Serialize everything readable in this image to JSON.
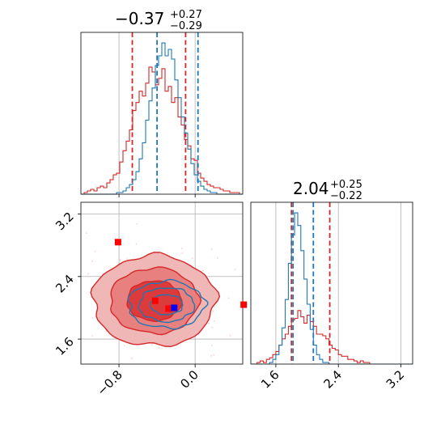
{
  "colors": {
    "red": "#d62728",
    "blue": "#1f77b4",
    "red_fill_outer": "#f0b7b7",
    "red_fill_mid": "#e88080",
    "red_fill_inner": "#dd3b3b",
    "marker_red": "#ff0000",
    "marker_blue": "#0000ff",
    "grid": "#b0b0b0"
  },
  "chart_data": [
    {
      "type": "histogram",
      "panel": "top-left",
      "title": {
        "value": "−0.37",
        "plus": "+0.27",
        "minus": "−0.29"
      },
      "xlim": [
        -1.2,
        0.5
      ],
      "xticks": [
        -0.8,
        0.0
      ],
      "grid": true,
      "series": [
        {
          "color": "#d62728",
          "dashed_lines": [
            -0.66,
            -0.1
          ],
          "bin_start": -1.2,
          "bin_width": 0.034,
          "counts": [
            0,
            1,
            2,
            3,
            2,
            4,
            5,
            4,
            7,
            9,
            12,
            13,
            20,
            27,
            33,
            40,
            52,
            57,
            64,
            61,
            69,
            79,
            76,
            68,
            72,
            78,
            64,
            67,
            57,
            60,
            48,
            43,
            34,
            30,
            22,
            21,
            13,
            10,
            8,
            6,
            5,
            4,
            4,
            3,
            2,
            2,
            1,
            1,
            1,
            0
          ]
        },
        {
          "color": "#1f77b4",
          "dashed_lines": [
            -0.4,
            0.03
          ],
          "bin_start": -1.2,
          "bin_width": 0.034,
          "counts": [
            0,
            0,
            0,
            0,
            0,
            0,
            0,
            0,
            0,
            0,
            0,
            1,
            1,
            2,
            4,
            6,
            9,
            14,
            22,
            32,
            46,
            58,
            66,
            80,
            86,
            94,
            86,
            90,
            84,
            71,
            60,
            48,
            38,
            28,
            19,
            12,
            8,
            5,
            3,
            2,
            1,
            1,
            0,
            0,
            0,
            0,
            0,
            0,
            0,
            0
          ]
        }
      ]
    },
    {
      "type": "contour",
      "panel": "bottom-left",
      "xlim": [
        -1.2,
        0.5
      ],
      "ylim": [
        1.28,
        3.35
      ],
      "xticks": [
        -0.8,
        0.0
      ],
      "yticks": [
        1.6,
        2.4,
        3.2
      ],
      "grid": true,
      "series": [
        {
          "color": "#d62728",
          "filled": true,
          "center": [
            -0.43,
            2.09
          ],
          "spread": [
            0.3,
            0.27
          ]
        },
        {
          "color": "#1f77b4",
          "filled": false,
          "center": [
            -0.3,
            2.04
          ],
          "spread": [
            0.2,
            0.15
          ]
        }
      ],
      "markers": [
        {
          "x": -0.81,
          "y": 2.84,
          "color": "#ff0000"
        },
        {
          "x": -0.42,
          "y": 2.09,
          "color": "#ff0000"
        },
        {
          "x": -0.28,
          "y": 1.99,
          "color": "#ff0000"
        },
        {
          "x": 0.51,
          "y": 2.04,
          "color": "#ff0000"
        },
        {
          "x": -0.22,
          "y": 2.0,
          "color": "#0000ff"
        }
      ]
    },
    {
      "type": "histogram",
      "panel": "bottom-right",
      "title": {
        "value": "2.04",
        "plus": "+0.25",
        "minus": "−0.22"
      },
      "xlim": [
        1.28,
        3.35
      ],
      "xticks": [
        1.6,
        2.4,
        3.2
      ],
      "grid": true,
      "series": [
        {
          "color": "#d62728",
          "dashed_lines": [
            1.8,
            2.29
          ],
          "bin_start": 1.28,
          "bin_width": 0.04,
          "counts": [
            0,
            0,
            1,
            2,
            1,
            3,
            4,
            6,
            8,
            12,
            16,
            19,
            24,
            28,
            29,
            34,
            30,
            26,
            31,
            27,
            24,
            19,
            19,
            18,
            16,
            12,
            10,
            9,
            6,
            5,
            5,
            3,
            3,
            2,
            1,
            2,
            1,
            1,
            0,
            0,
            0,
            0,
            0,
            0,
            0,
            0,
            0,
            0,
            0,
            0,
            0,
            0
          ]
        },
        {
          "color": "#1f77b4",
          "dashed_lines": [
            1.82,
            2.08
          ],
          "bin_start": 1.28,
          "bin_width": 0.04,
          "counts": [
            0,
            0,
            0,
            0,
            0,
            0,
            1,
            3,
            6,
            12,
            23,
            41,
            64,
            82,
            96,
            88,
            72,
            54,
            38,
            22,
            12,
            6,
            3,
            1,
            1,
            0,
            0,
            0,
            0,
            0,
            0,
            0,
            0,
            0,
            0,
            0,
            0,
            0,
            0,
            0,
            0,
            0,
            0,
            0,
            0,
            0,
            0,
            0,
            0,
            0,
            0,
            0
          ]
        }
      ]
    }
  ]
}
